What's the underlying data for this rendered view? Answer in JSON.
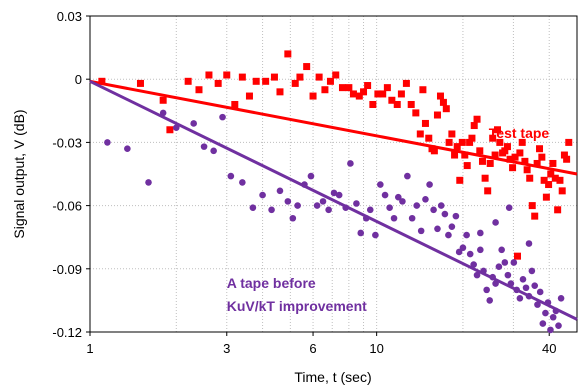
{
  "chart_data": {
    "type": "scatter",
    "xlabel": "Time, t (sec)",
    "ylabel": "Signal output, V (dB)",
    "xscale": "log",
    "xlim": [
      1,
      50
    ],
    "ylim": [
      -0.12,
      0.03
    ],
    "xticks": [
      1,
      3,
      6,
      10,
      40
    ],
    "xtick_labels": [
      "1",
      "3",
      "6",
      "10",
      "40"
    ],
    "yticks": [
      0.03,
      0,
      -0.03,
      -0.06,
      -0.09,
      -0.12
    ],
    "ytick_labels": [
      "0.03",
      "0",
      "-0.03",
      "-0.06",
      "-0.09",
      "-0.12"
    ],
    "grid": "dotted",
    "annotations": [
      {
        "text": "Test tape",
        "color": "#ff0000",
        "x": 40,
        "y": -0.028,
        "anchor": "end"
      },
      {
        "text": "A tape before",
        "color": "#7030a0",
        "x": 3,
        "y": -0.099,
        "anchor": "start"
      },
      {
        "text": "KuV/kT improvement",
        "color": "#7030a0",
        "x": 3,
        "y": -0.11,
        "anchor": "start"
      }
    ],
    "series": [
      {
        "marker": "square",
        "color": "#ff0000",
        "points": [
          [
            1.1,
            -0.001
          ],
          [
            1.5,
            -0.002
          ],
          [
            1.8,
            -0.01
          ],
          [
            1.9,
            -0.024
          ],
          [
            2.2,
            -0.001
          ],
          [
            2.4,
            -0.005
          ],
          [
            2.6,
            0.002
          ],
          [
            2.8,
            -0.002
          ],
          [
            3.0,
            0.002
          ],
          [
            3.2,
            -0.012
          ],
          [
            3.4,
            0.001
          ],
          [
            3.6,
            -0.008
          ],
          [
            3.8,
            -0.001
          ],
          [
            4.1,
            -0.001
          ],
          [
            4.4,
            0.001
          ],
          [
            4.6,
            -0.006
          ],
          [
            4.9,
            0.012
          ],
          [
            5.2,
            -0.002
          ],
          [
            5.4,
            0.001
          ],
          [
            5.7,
            0.006
          ],
          [
            6.0,
            -0.008
          ],
          [
            6.3,
            0.001
          ],
          [
            6.6,
            -0.005
          ],
          [
            6.9,
            -0.001
          ],
          [
            7.2,
            0.002
          ],
          [
            7.6,
            -0.004
          ],
          [
            8.0,
            -0.004
          ],
          [
            8.3,
            -0.007
          ],
          [
            8.7,
            -0.008
          ],
          [
            9.0,
            -0.006
          ],
          [
            9.3,
            -0.003
          ],
          [
            9.7,
            -0.012
          ],
          [
            10.1,
            -0.007
          ],
          [
            10.5,
            -0.007
          ],
          [
            10.9,
            -0.004
          ],
          [
            11.3,
            -0.01
          ],
          [
            11.8,
            -0.012
          ],
          [
            12.2,
            -0.007
          ],
          [
            12.7,
            -0.002
          ],
          [
            13.2,
            -0.012
          ],
          [
            13.7,
            -0.016
          ],
          [
            14.2,
            -0.026
          ],
          [
            14.5,
            -0.005
          ],
          [
            14.8,
            -0.021
          ],
          [
            15.2,
            -0.028
          ],
          [
            15.6,
            -0.033
          ],
          [
            15.9,
            -0.034
          ],
          [
            16.3,
            -0.017
          ],
          [
            16.7,
            -0.008
          ],
          [
            17.1,
            -0.011
          ],
          [
            17.5,
            -0.014
          ],
          [
            17.9,
            -0.03
          ],
          [
            18.3,
            -0.026
          ],
          [
            18.7,
            -0.036
          ],
          [
            19.1,
            -0.032
          ],
          [
            19.5,
            -0.048
          ],
          [
            19.9,
            -0.03
          ],
          [
            20.3,
            -0.036
          ],
          [
            20.7,
            -0.041
          ],
          [
            21.1,
            -0.03
          ],
          [
            21.5,
            -0.028
          ],
          [
            21.9,
            -0.022
          ],
          [
            22.4,
            -0.019
          ],
          [
            22.9,
            -0.034
          ],
          [
            23.4,
            -0.039
          ],
          [
            23.9,
            -0.047
          ],
          [
            24.4,
            -0.053
          ],
          [
            24.9,
            -0.04
          ],
          [
            25.4,
            -0.028
          ],
          [
            25.9,
            -0.036
          ],
          [
            26.4,
            -0.024
          ],
          [
            26.9,
            -0.03
          ],
          [
            27.5,
            -0.035
          ],
          [
            28.0,
            -0.034
          ],
          [
            28.6,
            -0.032
          ],
          [
            29.2,
            -0.038
          ],
          [
            29.8,
            -0.042
          ],
          [
            30.4,
            -0.037
          ],
          [
            31.0,
            -0.084
          ],
          [
            31.6,
            -0.035
          ],
          [
            32.2,
            -0.03
          ],
          [
            32.9,
            -0.039
          ],
          [
            33.5,
            -0.043
          ],
          [
            34.2,
            -0.047
          ],
          [
            34.9,
            -0.06
          ],
          [
            35.6,
            -0.065
          ],
          [
            36.3,
            -0.04
          ],
          [
            37.0,
            -0.033
          ],
          [
            37.7,
            -0.037
          ],
          [
            38.4,
            -0.048
          ],
          [
            39.1,
            -0.056
          ],
          [
            39.8,
            -0.05
          ],
          [
            40.5,
            -0.045
          ],
          [
            41.2,
            -0.04
          ],
          [
            42.0,
            -0.047
          ],
          [
            42.8,
            -0.062
          ],
          [
            43.6,
            -0.048
          ],
          [
            44.4,
            -0.053
          ],
          [
            45.2,
            -0.036
          ],
          [
            46.0,
            -0.038
          ],
          [
            46.8,
            -0.03
          ]
        ],
        "trend": [
          [
            1,
            -0.001
          ],
          [
            50,
            -0.045
          ]
        ]
      },
      {
        "marker": "circle",
        "color": "#7030a0",
        "points": [
          [
            1.15,
            -0.03
          ],
          [
            1.35,
            -0.033
          ],
          [
            1.6,
            -0.049
          ],
          [
            1.8,
            -0.016
          ],
          [
            2.0,
            -0.023
          ],
          [
            2.3,
            -0.021
          ],
          [
            2.5,
            -0.032
          ],
          [
            2.7,
            -0.034
          ],
          [
            2.9,
            -0.018
          ],
          [
            3.1,
            -0.046
          ],
          [
            3.4,
            -0.049
          ],
          [
            3.7,
            -0.061
          ],
          [
            4.0,
            -0.055
          ],
          [
            4.3,
            -0.062
          ],
          [
            4.6,
            -0.053
          ],
          [
            4.9,
            -0.058
          ],
          [
            5.1,
            -0.066
          ],
          [
            5.3,
            -0.06
          ],
          [
            5.6,
            -0.05
          ],
          [
            5.9,
            -0.046
          ],
          [
            6.2,
            -0.06
          ],
          [
            6.5,
            -0.058
          ],
          [
            6.8,
            -0.062
          ],
          [
            7.1,
            -0.054
          ],
          [
            7.4,
            -0.055
          ],
          [
            7.8,
            -0.061
          ],
          [
            8.1,
            -0.04
          ],
          [
            8.5,
            -0.059
          ],
          [
            8.8,
            -0.073
          ],
          [
            9.2,
            -0.066
          ],
          [
            9.5,
            -0.062
          ],
          [
            9.9,
            -0.074
          ],
          [
            10.3,
            -0.05
          ],
          [
            10.7,
            -0.055
          ],
          [
            11.1,
            -0.061
          ],
          [
            11.5,
            -0.066
          ],
          [
            11.9,
            -0.056
          ],
          [
            12.3,
            -0.058
          ],
          [
            12.8,
            -0.046
          ],
          [
            13.3,
            -0.066
          ],
          [
            13.8,
            -0.06
          ],
          [
            14.3,
            -0.072
          ],
          [
            14.8,
            -0.057
          ],
          [
            15.3,
            -0.05
          ],
          [
            15.8,
            -0.062
          ],
          [
            16.3,
            -0.071
          ],
          [
            16.8,
            -0.06
          ],
          [
            17.3,
            -0.064
          ],
          [
            17.8,
            -0.074
          ],
          [
            18.3,
            -0.07
          ],
          [
            18.9,
            -0.065
          ],
          [
            19.4,
            -0.082
          ],
          [
            20.0,
            -0.08
          ],
          [
            20.6,
            -0.074
          ],
          [
            21.2,
            -0.083
          ],
          [
            21.8,
            -0.088
          ],
          [
            22.4,
            -0.093
          ],
          [
            23.0,
            -0.081
          ],
          [
            23.6,
            -0.091
          ],
          [
            24.2,
            -0.1
          ],
          [
            24.8,
            -0.105
          ],
          [
            25.4,
            -0.094
          ],
          [
            26.0,
            -0.097
          ],
          [
            26.7,
            -0.089
          ],
          [
            27.3,
            -0.081
          ],
          [
            28.0,
            -0.087
          ],
          [
            28.7,
            -0.093
          ],
          [
            29.4,
            -0.097
          ],
          [
            30.1,
            -0.087
          ],
          [
            30.8,
            -0.1
          ],
          [
            31.6,
            -0.104
          ],
          [
            32.4,
            -0.095
          ],
          [
            33.2,
            -0.099
          ],
          [
            34.0,
            -0.103
          ],
          [
            34.8,
            -0.091
          ],
          [
            35.6,
            -0.098
          ],
          [
            36.4,
            -0.107
          ],
          [
            37.2,
            -0.101
          ],
          [
            38.0,
            -0.116
          ],
          [
            38.8,
            -0.111
          ],
          [
            39.6,
            -0.106
          ],
          [
            40.4,
            -0.119
          ],
          [
            41.3,
            -0.113
          ],
          [
            42.2,
            -0.11
          ],
          [
            43.1,
            -0.117
          ],
          [
            44.0,
            -0.104
          ],
          [
            23.0,
            -0.073
          ],
          [
            29.0,
            -0.061
          ],
          [
            26.0,
            -0.068
          ],
          [
            34.0,
            -0.078
          ]
        ],
        "trend": [
          [
            1,
            -0.001
          ],
          [
            50,
            -0.114
          ]
        ]
      }
    ]
  }
}
